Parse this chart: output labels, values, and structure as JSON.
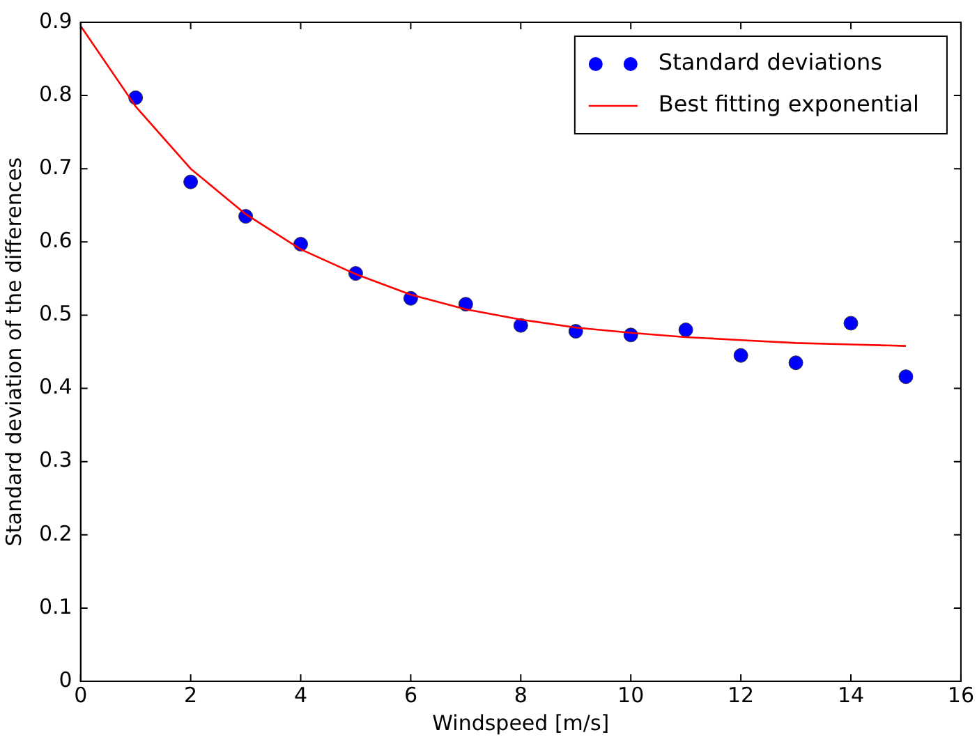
{
  "chart_data": {
    "type": "scatter",
    "xlabel": "Windspeed [m/s]",
    "ylabel": "Standard deviation of the differences",
    "xlim": [
      0,
      16
    ],
    "xticks": [
      0,
      2,
      4,
      6,
      8,
      10,
      12,
      14,
      16
    ],
    "ylim": [
      0,
      0.9
    ],
    "yticks": [
      0,
      0.1,
      0.2,
      0.3,
      0.4,
      0.5,
      0.6,
      0.7,
      0.8,
      0.9
    ],
    "grid": false,
    "legend": "top right",
    "series": [
      {
        "name": "Standard deviations",
        "marker": "circle",
        "color": "#0000ff",
        "x": [
          1,
          2,
          3,
          4,
          5,
          6,
          7,
          8,
          9,
          10,
          11,
          12,
          13,
          14,
          15
        ],
        "values": [
          0.797,
          0.682,
          0.635,
          0.597,
          0.557,
          0.523,
          0.515,
          0.486,
          0.478,
          0.473,
          0.48,
          0.445,
          0.435,
          0.489,
          0.416
        ]
      },
      {
        "name": "Best fitting exponential",
        "type": "line",
        "marker": "none",
        "color": "#ff0000",
        "x": [
          0,
          1,
          2,
          3,
          4,
          5,
          6,
          7,
          8,
          9,
          10,
          11,
          12,
          13,
          14,
          15
        ],
        "values": [
          0.895,
          0.785,
          0.7,
          0.638,
          0.59,
          0.556,
          0.528,
          0.508,
          0.494,
          0.483,
          0.476,
          0.47,
          0.466,
          0.462,
          0.46,
          0.458
        ]
      }
    ]
  }
}
